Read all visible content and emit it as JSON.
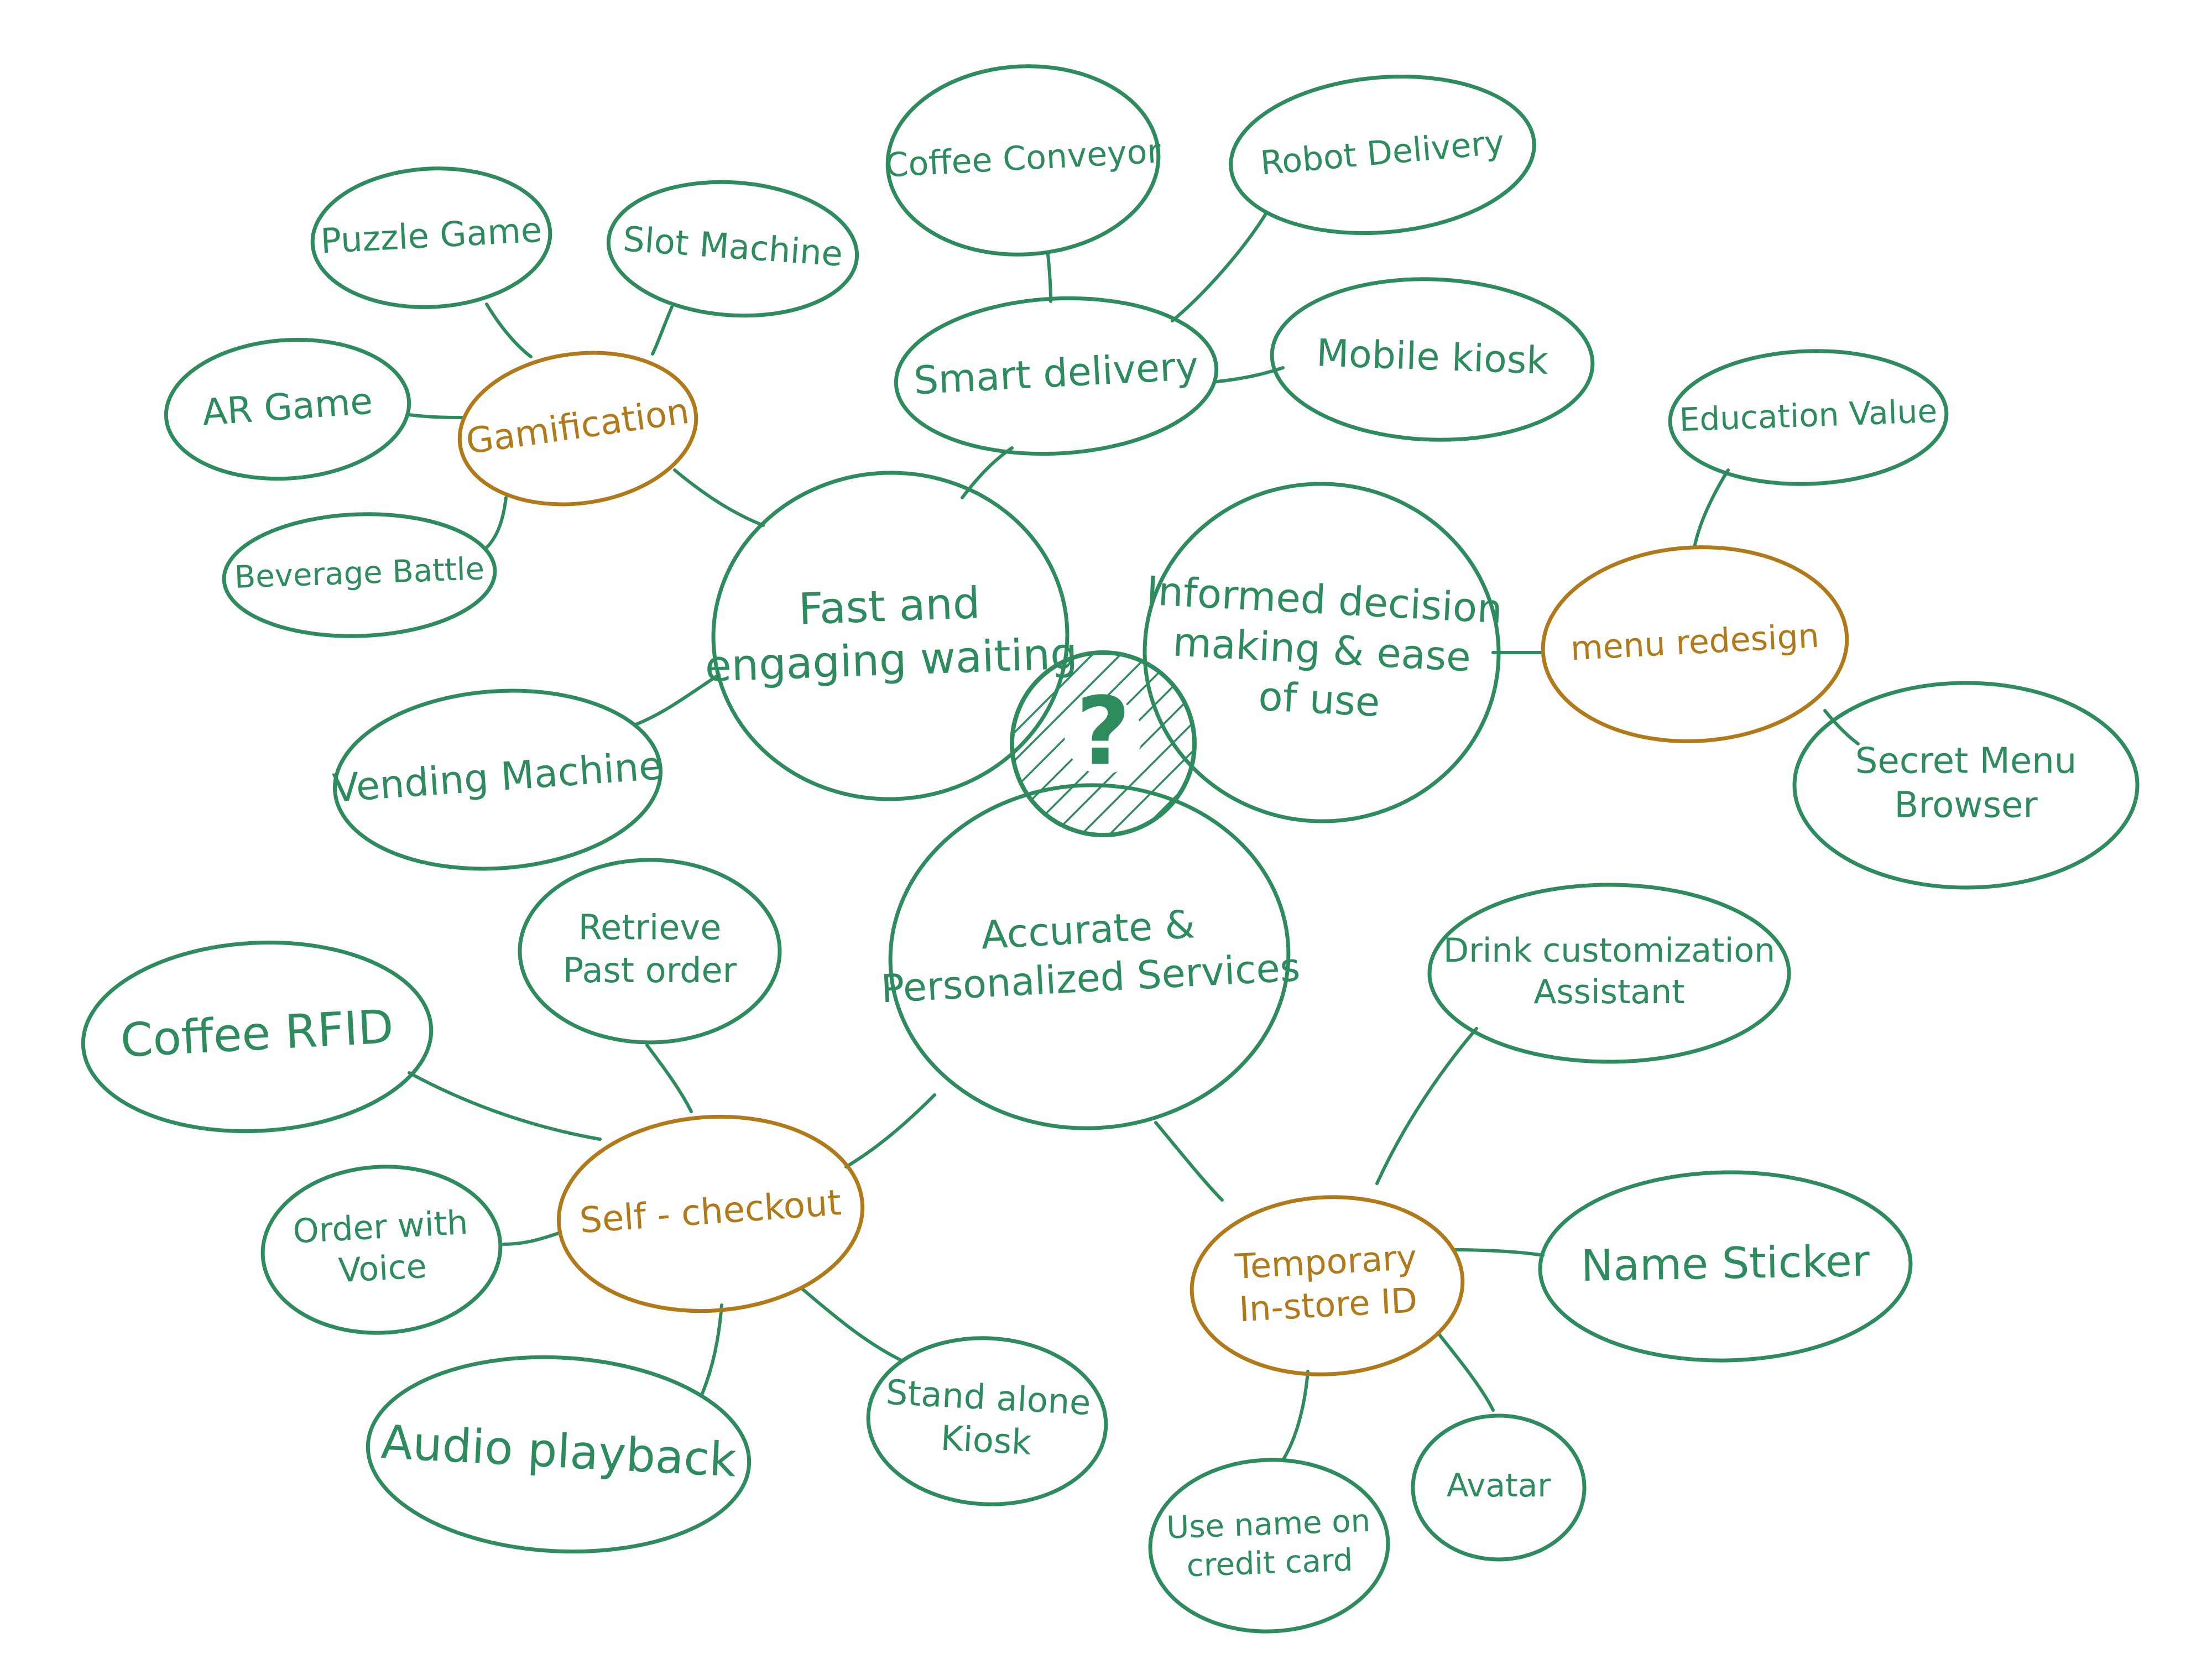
{
  "colors": {
    "green": "#2e8b5e",
    "orange": "#b07a1a",
    "background": "#ffffff"
  },
  "center": {
    "label": "?"
  },
  "pillars": {
    "fast": {
      "lines": [
        "Fast and",
        "engaging waiting"
      ]
    },
    "informed": {
      "lines": [
        "Informed decision",
        "making & ease",
        "of use"
      ]
    },
    "accurate": {
      "lines": [
        "Accurate &",
        "Personalized Services"
      ]
    }
  },
  "categories": {
    "gamification": {
      "lines": [
        "Gamification"
      ]
    },
    "smart_delivery": {
      "lines": [
        "Smart delivery"
      ]
    },
    "menu_redesign": {
      "lines": [
        "menu redesign"
      ]
    },
    "self_checkout": {
      "lines": [
        "Self - checkout"
      ]
    },
    "temporary_id": {
      "lines": [
        "Temporary",
        "In-store ID"
      ]
    }
  },
  "ideas": {
    "puzzle_game": {
      "lines": [
        "Puzzle Game"
      ]
    },
    "slot_machine": {
      "lines": [
        "Slot Machine"
      ]
    },
    "ar_game": {
      "lines": [
        "AR Game"
      ]
    },
    "beverage_battle": {
      "lines": [
        "Beverage Battle"
      ]
    },
    "vending_machine": {
      "lines": [
        "Vending Machine"
      ]
    },
    "coffee_conveyor": {
      "lines": [
        "Coffee Conveyor"
      ]
    },
    "robot_delivery": {
      "lines": [
        "Robot Delivery"
      ]
    },
    "mobile_kiosk": {
      "lines": [
        "Mobile kiosk"
      ]
    },
    "education_value": {
      "lines": [
        "Education Value"
      ]
    },
    "secret_menu": {
      "lines": [
        "Secret Menu",
        "Browser"
      ]
    },
    "retrieve_past_order": {
      "lines": [
        "Retrieve",
        "Past order"
      ]
    },
    "coffee_rfid": {
      "lines": [
        "Coffee RFID"
      ]
    },
    "order_with_voice": {
      "lines": [
        "Order with",
        "Voice"
      ]
    },
    "audio_playback": {
      "lines": [
        "Audio playback"
      ]
    },
    "stand_alone_kiosk": {
      "lines": [
        "Stand alone",
        "Kiosk"
      ]
    },
    "drink_customization": {
      "lines": [
        "Drink customization",
        "Assistant"
      ]
    },
    "name_sticker": {
      "lines": [
        "Name Sticker"
      ]
    },
    "avatar": {
      "lines": [
        "Avatar"
      ]
    },
    "use_name_credit_card": {
      "lines": [
        "Use name on",
        "credit card"
      ]
    }
  }
}
